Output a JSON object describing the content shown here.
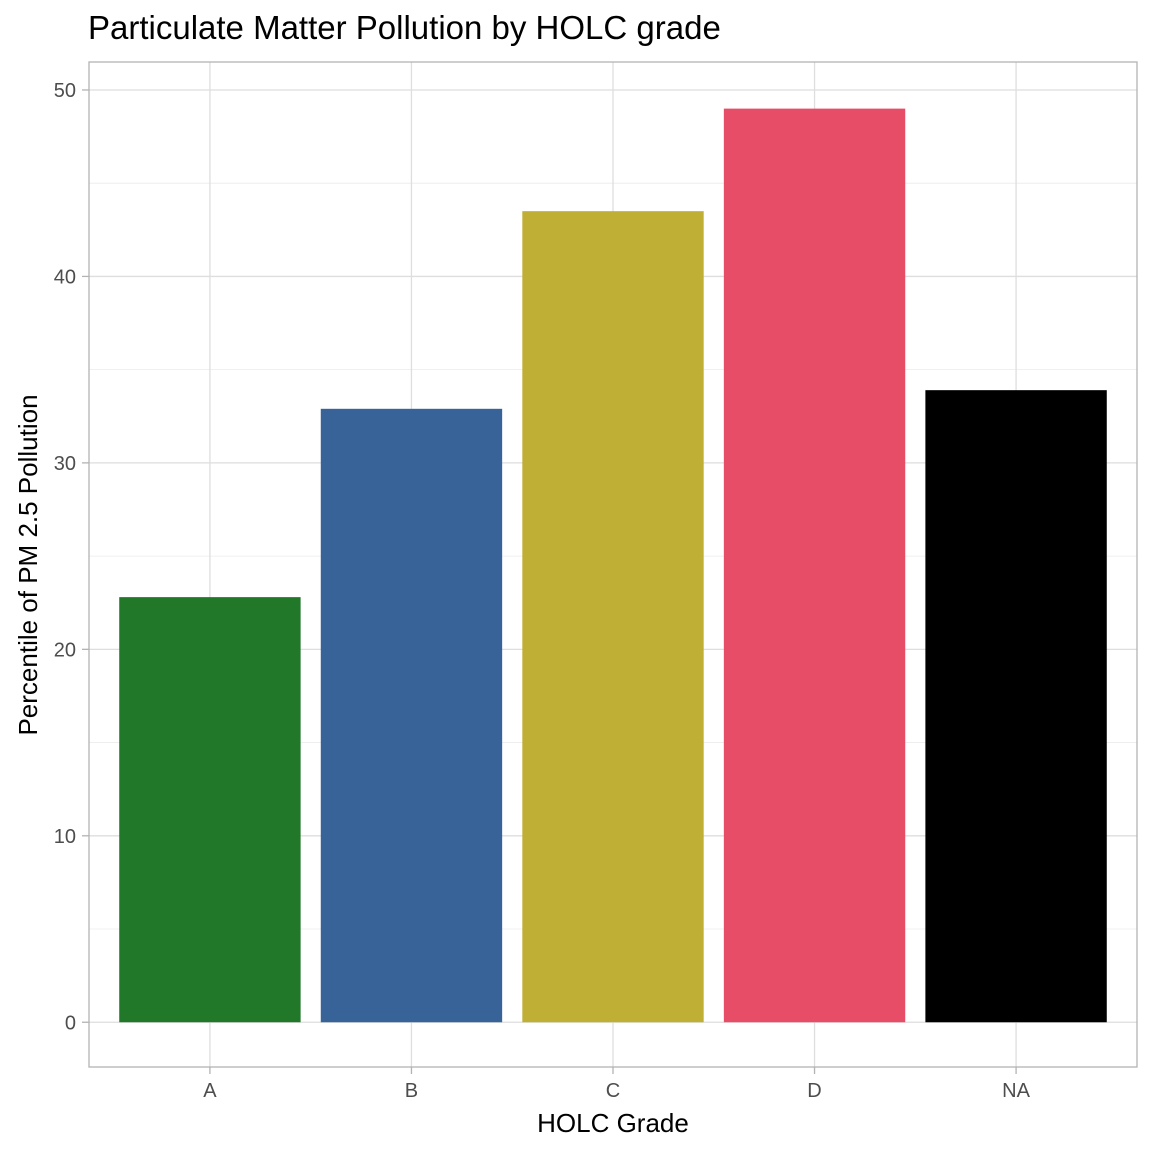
{
  "chart_data": {
    "type": "bar",
    "title": "Particulate Matter Pollution by HOLC grade",
    "xlabel": "HOLC Grade",
    "ylabel": "Percentile of PM 2.5 Pollution",
    "categories": [
      "A",
      "B",
      "C",
      "D",
      "NA"
    ],
    "values": [
      22.8,
      32.9,
      43.5,
      49.0,
      33.9
    ],
    "colors": [
      "#217829",
      "#376398",
      "#c0af35",
      "#e84d67",
      "#000000"
    ],
    "ylim": [
      -2.4,
      51.5
    ],
    "yticks": [
      0,
      10,
      20,
      30,
      40,
      50
    ],
    "ytick_labels": [
      "0",
      "10",
      "20",
      "30",
      "40",
      "50"
    ],
    "grid": true,
    "legend": "none"
  }
}
